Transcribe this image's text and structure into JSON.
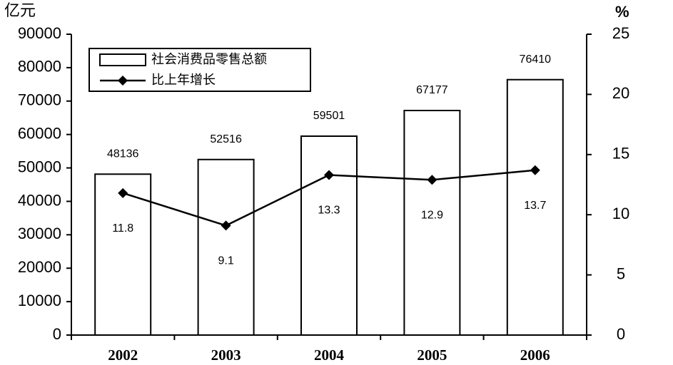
{
  "chart_data": {
    "type": "bar",
    "y_label": "亿元",
    "y2_label": "%",
    "categories": [
      "2002",
      "2003",
      "2004",
      "2005",
      "2006"
    ],
    "series": [
      {
        "name": "社会消费品零售总额",
        "type": "bar",
        "color": "#ffffff",
        "values": [
          48136,
          52516,
          59501,
          67177,
          76410
        ]
      },
      {
        "name": "比上年增长",
        "type": "line",
        "axis": "y2",
        "color": "#000000",
        "values": [
          11.8,
          9.1,
          13.3,
          12.9,
          13.7
        ]
      }
    ],
    "ylim": [
      0,
      90000
    ],
    "yticks": [
      0,
      10000,
      20000,
      30000,
      40000,
      50000,
      60000,
      70000,
      80000,
      90000
    ],
    "y2lim": [
      0,
      25
    ],
    "y2ticks": [
      0,
      5,
      10,
      15,
      20,
      25
    ],
    "grid": false,
    "legend": "upper left"
  }
}
